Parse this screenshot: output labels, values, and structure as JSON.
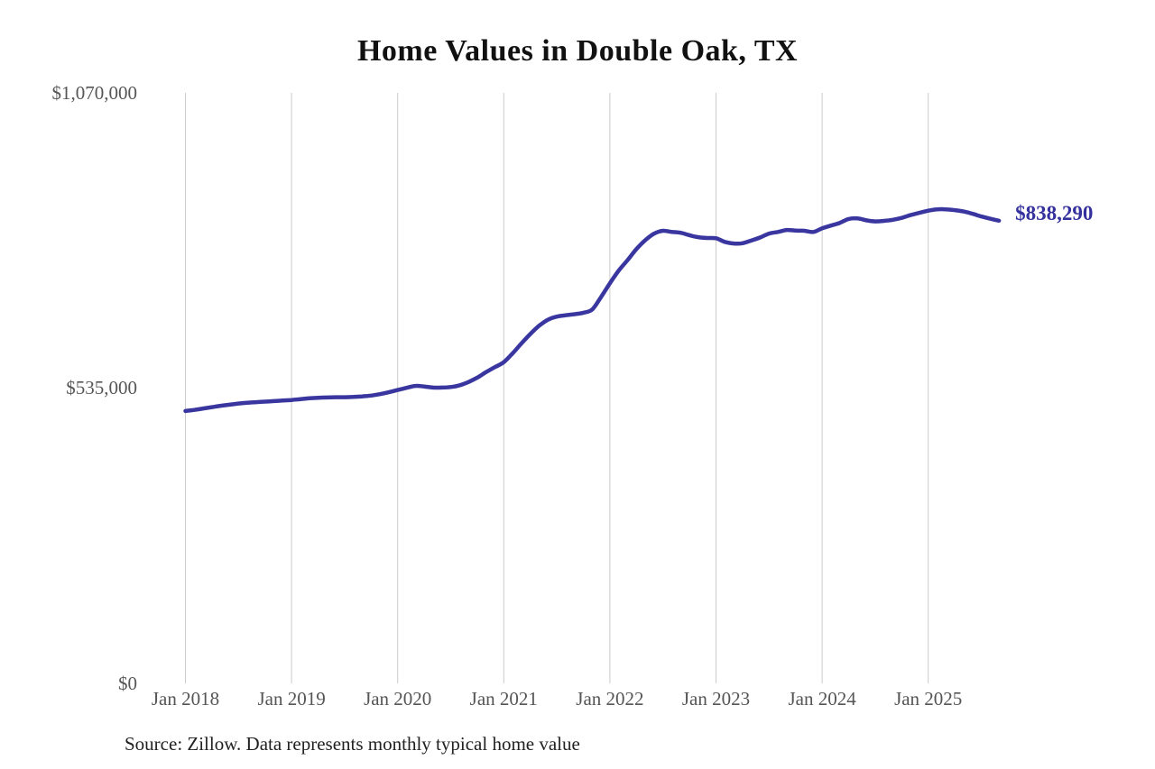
{
  "page": {
    "title": "Home Values in Double Oak, TX",
    "source_note": "Source: Zillow. Data represents monthly typical home value"
  },
  "colors": {
    "line": "#3a36a0",
    "end_label": "#34319e",
    "gridline": "#cccccc",
    "axis_text": "#555555",
    "title_text": "#111111"
  },
  "chart_data": {
    "type": "line",
    "title": "Home Values in Double Oak, TX",
    "series_name": "Monthly typical home value",
    "grid": "vertical-only",
    "legend": "none",
    "x_axis": {
      "tick_labels": [
        "Jan 2018",
        "Jan 2019",
        "Jan 2020",
        "Jan 2021",
        "Jan 2022",
        "Jan 2023",
        "Jan 2024",
        "Jan 2025"
      ],
      "range": [
        "2018-01",
        "2025-09"
      ]
    },
    "y_axis": {
      "tick_labels": [
        "$0",
        "$535,000",
        "$1,070,000"
      ],
      "tick_values": [
        0,
        535000,
        1070000
      ],
      "range": [
        0,
        1070000
      ]
    },
    "end_label": "$838,290",
    "last_value": 838290,
    "points": [
      {
        "date": "2018-01",
        "value": 493500
      },
      {
        "date": "2018-02",
        "value": 495500
      },
      {
        "date": "2018-03",
        "value": 498000
      },
      {
        "date": "2018-04",
        "value": 500500
      },
      {
        "date": "2018-05",
        "value": 503000
      },
      {
        "date": "2018-06",
        "value": 505000
      },
      {
        "date": "2018-07",
        "value": 507000
      },
      {
        "date": "2018-08",
        "value": 508500
      },
      {
        "date": "2018-09",
        "value": 509500
      },
      {
        "date": "2018-10",
        "value": 510500
      },
      {
        "date": "2018-11",
        "value": 511500
      },
      {
        "date": "2018-12",
        "value": 512500
      },
      {
        "date": "2019-01",
        "value": 513500
      },
      {
        "date": "2019-02",
        "value": 515000
      },
      {
        "date": "2019-03",
        "value": 516500
      },
      {
        "date": "2019-04",
        "value": 517500
      },
      {
        "date": "2019-05",
        "value": 518000
      },
      {
        "date": "2019-06",
        "value": 518500
      },
      {
        "date": "2019-07",
        "value": 518500
      },
      {
        "date": "2019-08",
        "value": 519000
      },
      {
        "date": "2019-09",
        "value": 520000
      },
      {
        "date": "2019-10",
        "value": 521500
      },
      {
        "date": "2019-11",
        "value": 524000
      },
      {
        "date": "2019-12",
        "value": 527500
      },
      {
        "date": "2020-01",
        "value": 531500
      },
      {
        "date": "2020-02",
        "value": 535500
      },
      {
        "date": "2020-03",
        "value": 539000
      },
      {
        "date": "2020-04",
        "value": 538000
      },
      {
        "date": "2020-05",
        "value": 536000
      },
      {
        "date": "2020-06",
        "value": 536000
      },
      {
        "date": "2020-07",
        "value": 537000
      },
      {
        "date": "2020-08",
        "value": 540000
      },
      {
        "date": "2020-09",
        "value": 546000
      },
      {
        "date": "2020-10",
        "value": 554000
      },
      {
        "date": "2020-11",
        "value": 564000
      },
      {
        "date": "2020-12",
        "value": 573000
      },
      {
        "date": "2021-01",
        "value": 582000
      },
      {
        "date": "2021-02",
        "value": 598000
      },
      {
        "date": "2021-03",
        "value": 616000
      },
      {
        "date": "2021-04",
        "value": 633000
      },
      {
        "date": "2021-05",
        "value": 648000
      },
      {
        "date": "2021-06",
        "value": 659000
      },
      {
        "date": "2021-07",
        "value": 664500
      },
      {
        "date": "2021-08",
        "value": 667000
      },
      {
        "date": "2021-09",
        "value": 669000
      },
      {
        "date": "2021-10",
        "value": 671500
      },
      {
        "date": "2021-11",
        "value": 677500
      },
      {
        "date": "2021-12",
        "value": 700000
      },
      {
        "date": "2022-01",
        "value": 725000
      },
      {
        "date": "2022-02",
        "value": 748000
      },
      {
        "date": "2022-03",
        "value": 767000
      },
      {
        "date": "2022-04",
        "value": 787000
      },
      {
        "date": "2022-05",
        "value": 803000
      },
      {
        "date": "2022-06",
        "value": 815000
      },
      {
        "date": "2022-07",
        "value": 820000
      },
      {
        "date": "2022-08",
        "value": 818000
      },
      {
        "date": "2022-09",
        "value": 816500
      },
      {
        "date": "2022-10",
        "value": 812000
      },
      {
        "date": "2022-11",
        "value": 808500
      },
      {
        "date": "2022-12",
        "value": 807000
      },
      {
        "date": "2023-01",
        "value": 806500
      },
      {
        "date": "2023-02",
        "value": 800000
      },
      {
        "date": "2023-03",
        "value": 797000
      },
      {
        "date": "2023-04",
        "value": 797500
      },
      {
        "date": "2023-05",
        "value": 802500
      },
      {
        "date": "2023-06",
        "value": 808000
      },
      {
        "date": "2023-07",
        "value": 815000
      },
      {
        "date": "2023-08",
        "value": 818000
      },
      {
        "date": "2023-09",
        "value": 821500
      },
      {
        "date": "2023-10",
        "value": 820500
      },
      {
        "date": "2023-11",
        "value": 820000
      },
      {
        "date": "2023-12",
        "value": 818000
      },
      {
        "date": "2024-01",
        "value": 824500
      },
      {
        "date": "2024-02",
        "value": 829500
      },
      {
        "date": "2024-03",
        "value": 834500
      },
      {
        "date": "2024-04",
        "value": 841500
      },
      {
        "date": "2024-05",
        "value": 842500
      },
      {
        "date": "2024-06",
        "value": 839000
      },
      {
        "date": "2024-07",
        "value": 837000
      },
      {
        "date": "2024-08",
        "value": 838000
      },
      {
        "date": "2024-09",
        "value": 840000
      },
      {
        "date": "2024-10",
        "value": 843500
      },
      {
        "date": "2024-11",
        "value": 848500
      },
      {
        "date": "2024-12",
        "value": 852500
      },
      {
        "date": "2025-01",
        "value": 856500
      },
      {
        "date": "2025-02",
        "value": 859000
      },
      {
        "date": "2025-03",
        "value": 859000
      },
      {
        "date": "2025-04",
        "value": 857500
      },
      {
        "date": "2025-05",
        "value": 855000
      },
      {
        "date": "2025-06",
        "value": 851000
      },
      {
        "date": "2025-07",
        "value": 846000
      },
      {
        "date": "2025-08",
        "value": 842000
      },
      {
        "date": "2025-09",
        "value": 838290
      }
    ]
  }
}
